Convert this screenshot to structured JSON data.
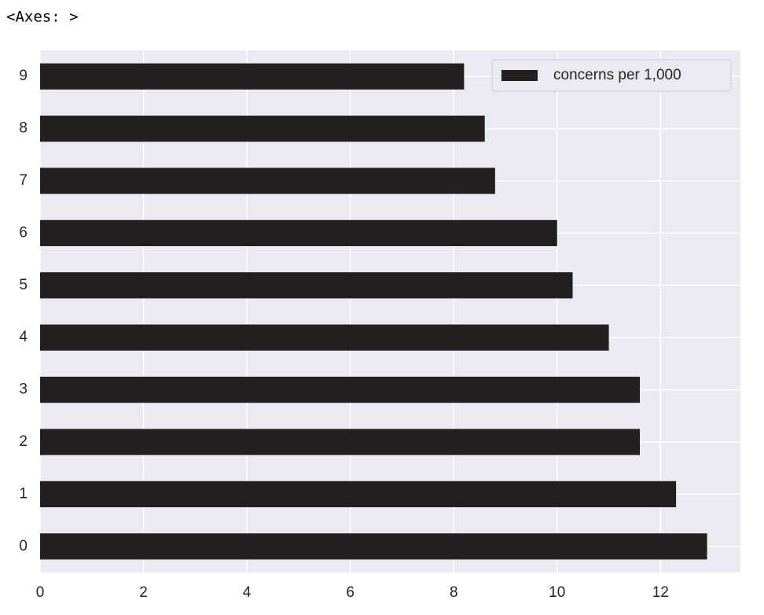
{
  "chart_data": {
    "type": "barh",
    "title": "<Axes: >",
    "categories": [
      "0",
      "1",
      "2",
      "3",
      "4",
      "5",
      "6",
      "7",
      "8",
      "9"
    ],
    "series": [
      {
        "name": "concerns per 1,000",
        "color": "#231f20",
        "values": [
          12.9,
          12.3,
          11.6,
          11.6,
          11.0,
          10.3,
          10.0,
          8.8,
          8.6,
          8.2
        ]
      }
    ],
    "xlim": [
      0,
      13.545
    ],
    "xticks": [
      0,
      2,
      4,
      6,
      8,
      10,
      12
    ],
    "grid": true,
    "legend": "upper right"
  }
}
